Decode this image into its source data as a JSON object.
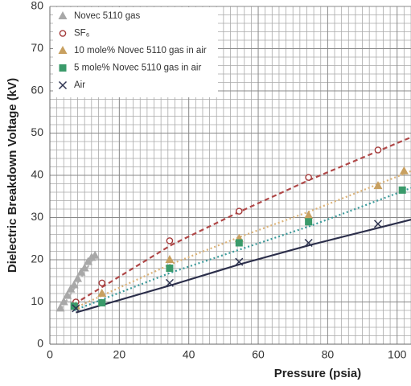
{
  "chart_data": {
    "type": "scatter",
    "x_label": "Pressure (psia)",
    "y_label": "Dielectric Breakdown Voltage (kV)",
    "xlim": [
      0,
      104
    ],
    "xticks": [
      0,
      20,
      40,
      60,
      80,
      100
    ],
    "ylim": [
      0,
      80
    ],
    "yticks": [
      0,
      10,
      20,
      30,
      40,
      50,
      60,
      70,
      80
    ],
    "grid": true,
    "legend": "upper left",
    "series": [
      {
        "name": "Novec 5110 gas",
        "color": "#a8a8a8",
        "marker": "triangle",
        "x": [
          3,
          4,
          5,
          6,
          7,
          8,
          9,
          10,
          11,
          12,
          13
        ],
        "values": [
          8.5,
          10,
          11.5,
          13,
          14,
          15.5,
          17,
          18,
          19.5,
          20.5,
          21
        ],
        "fit": {
          "color": "#b0b0b0",
          "dash": "dashed",
          "x": [
            3,
            13
          ],
          "values": [
            8,
            21
          ]
        }
      },
      {
        "name": "SF₆",
        "color": "#a33a3a",
        "marker": "circle",
        "x": [
          7.5,
          15,
          34.5,
          54.5,
          74.5,
          94.5
        ],
        "values": [
          10,
          14.5,
          24.5,
          31.5,
          39.5,
          46
        ],
        "fit": {
          "color": "#b04848",
          "dash": "dashed",
          "x": [
            7,
            35,
            55,
            75,
            104
          ],
          "values": [
            9.5,
            23.5,
            31.5,
            39,
            49
          ]
        }
      },
      {
        "name": "10 mole% Novec 5110 gas in air",
        "color": "#c8a060",
        "marker": "triangle",
        "x": [
          7.5,
          15,
          34.5,
          54.5,
          74.5,
          94.5,
          102
        ],
        "values": [
          9,
          12,
          20,
          25,
          30.5,
          37.5,
          41
        ],
        "fit": {
          "color": "#dbb277",
          "dash": "dotted",
          "x": [
            7,
            35,
            55,
            75,
            104
          ],
          "values": [
            8.5,
            19,
            25.5,
            31.5,
            41
          ]
        }
      },
      {
        "name": "5 mole% Novec 5110 gas in air",
        "color": "#3a9a6a",
        "marker": "square",
        "x": [
          7,
          15,
          34.5,
          54.5,
          74.5,
          101.5
        ],
        "values": [
          9,
          9.8,
          18,
          24,
          29,
          36.5
        ],
        "fit": {
          "color": "#3a9a9a",
          "dash": "dotted",
          "x": [
            7,
            35,
            55,
            75,
            104
          ],
          "values": [
            8,
            17,
            22.5,
            28,
            37
          ]
        }
      },
      {
        "name": "Air",
        "color": "#2d3350",
        "marker": "x",
        "x": [
          7.5,
          34.5,
          54.5,
          74.5,
          94.5
        ],
        "values": [
          8.5,
          14.5,
          19.5,
          24,
          28.5
        ],
        "fit": {
          "color": "#2b2e4a",
          "dash": "solid",
          "x": [
            7.5,
            35,
            55,
            75,
            104
          ],
          "values": [
            7.5,
            14,
            19,
            23.5,
            29.5
          ]
        }
      }
    ]
  }
}
